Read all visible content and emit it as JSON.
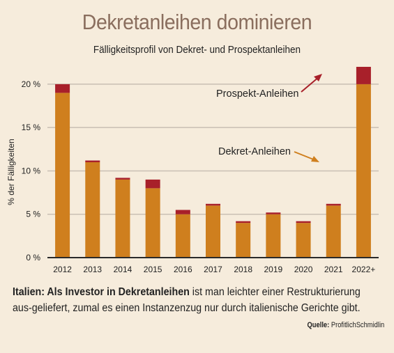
{
  "header": {
    "title": "Dekretanleihen dominieren",
    "subtitle": "Fälligkeitsprofil von Dekret- und Prospektanleihen"
  },
  "chart_data": {
    "type": "bar",
    "stacked": true,
    "categories": [
      "2012",
      "2013",
      "2014",
      "2015",
      "2016",
      "2017",
      "2018",
      "2019",
      "2020",
      "2021",
      "2022+"
    ],
    "series": [
      {
        "name": "Dekret-Anleihen",
        "color": "#cf7f1e",
        "values": [
          19,
          11,
          9,
          8,
          5,
          6,
          4,
          5,
          4,
          6,
          20
        ]
      },
      {
        "name": "Prospekt-Anleihen",
        "color": "#a8202a",
        "values": [
          1,
          0.2,
          0.2,
          1,
          0.5,
          0.2,
          0.2,
          0.2,
          0.2,
          0.2,
          2
        ]
      }
    ],
    "ylabel": "% der Fälligkeiten",
    "yticks": [
      "0 %",
      "5 %",
      "10 %",
      "15 %",
      "20 %"
    ],
    "ytick_values": [
      0,
      5,
      10,
      15,
      20
    ],
    "ylim": [
      0,
      22
    ],
    "grid": true
  },
  "caption": {
    "bold": "Italien: Als Investor in Dekretanleihen",
    "text": " ist man leichter einer Restrukturierung aus-geliefert, zumal es einen Instanzenzug nur durch italienische Gerichte gibt."
  },
  "source": {
    "label": "Quelle:",
    "name": "ProfitlichSchmidlin"
  }
}
